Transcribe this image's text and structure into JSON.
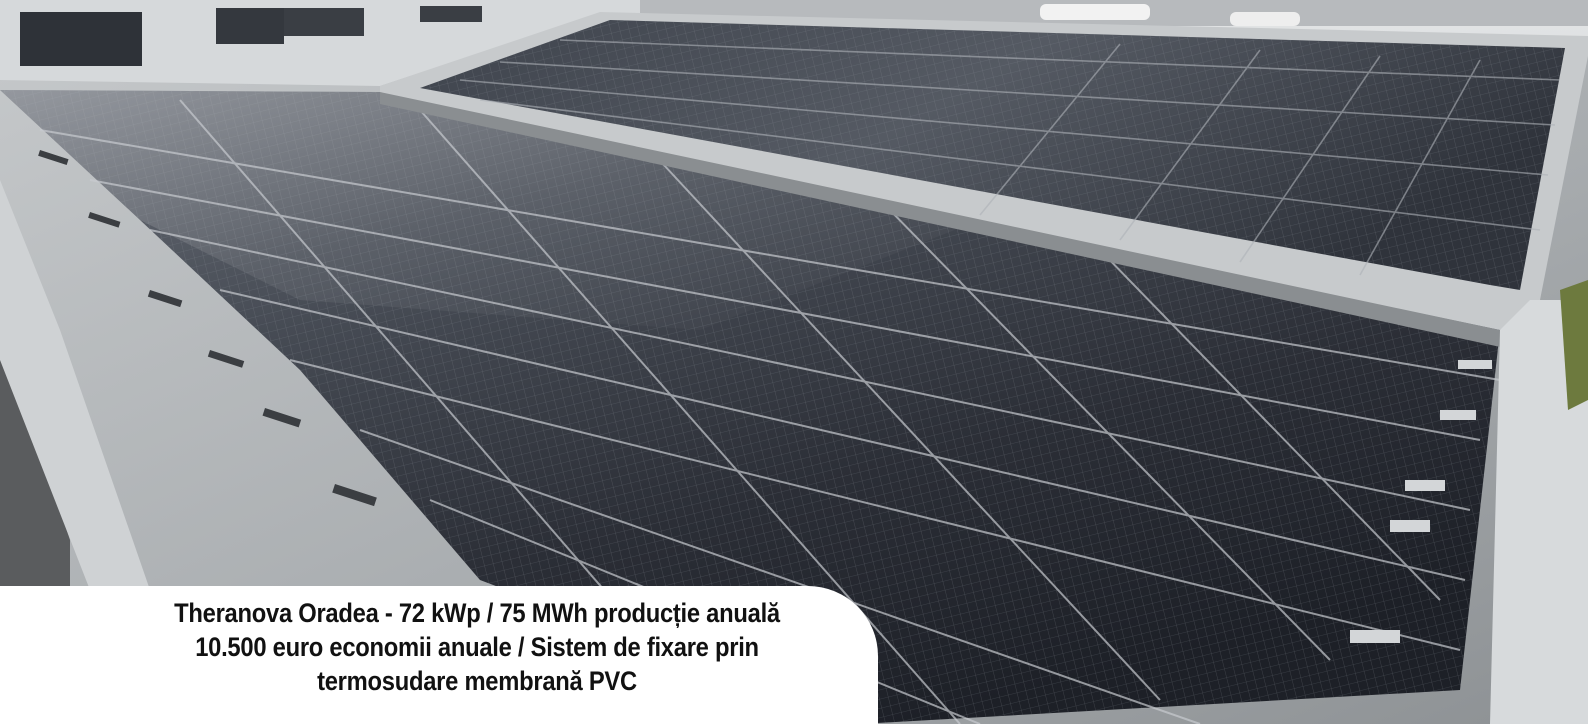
{
  "caption": {
    "line1": "Theranova Oradea - 72 kWp / 75 MWh producție anuală",
    "line2": "10.500 euro economii anuale / Sistem de fixare prin",
    "line3": "termosudare membrană PVC"
  },
  "palette": {
    "panel_dark": "#2a2d34",
    "panel_light": "#5e636c",
    "roof_membrane": "#b4b8ba",
    "sky_building": "#d9dcde",
    "caption_bg": "#ffffff",
    "caption_text": "#111111"
  }
}
